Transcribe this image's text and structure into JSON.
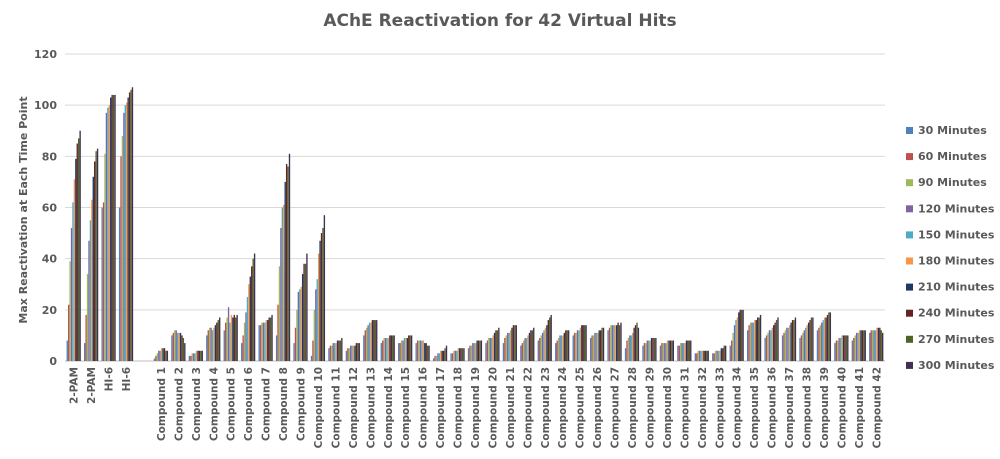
{
  "chart_data": {
    "type": "bar",
    "title": "AChE Reactivation for 42 Virtual Hits",
    "xlabel": "",
    "ylabel": "Max Reactivation at Each Time Point",
    "ylim": [
      0,
      120
    ],
    "yticks": [
      0,
      20,
      40,
      60,
      80,
      100,
      120
    ],
    "grid": "on",
    "legend_position": "right",
    "categories": [
      "2-PAM",
      "2-PAM",
      "HI-6",
      "HI-6",
      "",
      "Compound 1",
      "Compound 2",
      "Compound 3",
      "Compound 4",
      "Compound 5",
      "Compound 6",
      "Compound 7",
      "Compound 8",
      "Compound 9",
      "Compound 10",
      "Compound 11",
      "Compound 12",
      "Compound 13",
      "Compound 14",
      "Compound 15",
      "Compound 16",
      "Compound 17",
      "Compound 18",
      "Compound 19",
      "Compound 20",
      "Compound 21",
      "Compound 22",
      "Compound 23",
      "Compound 24",
      "Compound 25",
      "Compound 26",
      "Compound 27",
      "Compound 28",
      "Compound 29",
      "Compound 30",
      "Compound 31",
      "Compound 32",
      "Compound 33",
      "Compound 34",
      "Compound 35",
      "Compound 36",
      "Compound 37",
      "Compound 38",
      "Compound 39",
      "Compound 40",
      "Compound 41",
      "Compound 42"
    ],
    "series_colors": [
      "#4f81bd",
      "#c0504d",
      "#9bbb59",
      "#8064a2",
      "#4bacc6",
      "#f79646",
      "#1f3864",
      "#632523",
      "#4f6228",
      "#3f3151"
    ],
    "series": [
      {
        "name": "30 Minutes",
        "values": [
          8,
          7,
          60,
          60,
          0,
          1,
          10,
          2,
          10,
          12,
          7,
          14,
          10,
          7,
          2,
          5,
          4,
          10,
          7,
          7,
          7,
          1,
          3,
          5,
          7,
          7,
          6,
          8,
          7,
          10,
          9,
          12,
          5,
          6,
          6,
          6,
          3,
          3,
          6,
          12,
          9,
          10,
          9,
          12,
          7,
          8,
          11
        ]
      },
      {
        "name": "60 Minutes",
        "values": [
          22,
          18,
          62,
          80,
          0,
          2,
          11,
          2,
          12,
          15,
          10,
          14,
          22,
          13,
          8,
          6,
          5,
          12,
          8,
          7,
          8,
          2,
          3,
          6,
          8,
          9,
          7,
          9,
          8,
          11,
          10,
          13,
          8,
          7,
          7,
          6,
          3,
          3,
          8,
          14,
          10,
          11,
          10,
          13,
          8,
          9,
          12
        ]
      },
      {
        "name": "90 Minutes",
        "values": [
          39,
          34,
          81,
          88,
          0,
          3,
          12,
          3,
          13,
          17,
          15,
          15,
          37,
          20,
          20,
          6,
          5,
          13,
          9,
          8,
          8,
          2,
          4,
          6,
          9,
          10,
          8,
          10,
          9,
          11,
          10,
          14,
          9,
          7,
          7,
          7,
          4,
          4,
          11,
          15,
          11,
          12,
          11,
          14,
          8,
          10,
          12
        ]
      },
      {
        "name": "120 Minutes",
        "values": [
          52,
          47,
          97,
          97,
          0,
          4,
          12,
          3,
          13,
          21,
          19,
          15,
          52,
          27,
          28,
          7,
          6,
          14,
          9,
          8,
          8,
          3,
          4,
          7,
          9,
          11,
          9,
          11,
          10,
          12,
          11,
          14,
          10,
          8,
          7,
          7,
          4,
          4,
          14,
          15,
          12,
          13,
          12,
          15,
          9,
          11,
          12
        ]
      },
      {
        "name": "150 Minutes",
        "values": [
          62,
          55,
          99,
          100,
          0,
          4,
          11,
          3,
          12,
          15,
          25,
          15,
          60,
          28,
          32,
          7,
          6,
          15,
          9,
          9,
          8,
          3,
          4,
          7,
          9,
          11,
          9,
          12,
          10,
          12,
          11,
          14,
          10,
          8,
          7,
          7,
          4,
          4,
          16,
          15,
          12,
          13,
          13,
          16,
          9,
          11,
          12
        ]
      },
      {
        "name": "180 Minutes",
        "values": [
          71,
          63,
          100,
          101,
          0,
          5,
          11,
          4,
          13,
          18,
          30,
          16,
          61,
          29,
          42,
          7,
          6,
          15,
          9,
          9,
          8,
          4,
          5,
          7,
          10,
          12,
          10,
          13,
          10,
          13,
          11,
          14,
          11,
          8,
          8,
          7,
          4,
          4,
          17,
          16,
          13,
          14,
          14,
          17,
          10,
          12,
          13
        ]
      },
      {
        "name": "210 Minutes",
        "values": [
          79,
          72,
          103,
          103,
          0,
          5,
          11,
          4,
          14,
          17,
          33,
          16,
          70,
          34,
          47,
          8,
          6,
          16,
          10,
          9,
          7,
          4,
          5,
          8,
          11,
          13,
          11,
          14,
          11,
          14,
          12,
          14,
          13,
          9,
          8,
          8,
          4,
          5,
          19,
          16,
          14,
          15,
          15,
          17,
          10,
          12,
          13
        ]
      },
      {
        "name": "240 Minutes",
        "values": [
          85,
          78,
          104,
          105,
          0,
          5,
          10,
          4,
          15,
          18,
          37,
          17,
          77,
          38,
          50,
          8,
          7,
          16,
          10,
          10,
          7,
          4,
          5,
          8,
          12,
          14,
          12,
          16,
          12,
          14,
          12,
          15,
          14,
          9,
          8,
          8,
          4,
          5,
          20,
          17,
          15,
          16,
          16,
          18,
          10,
          12,
          13
        ]
      },
      {
        "name": "270 Minutes",
        "values": [
          87,
          82,
          104,
          106,
          0,
          4,
          9,
          4,
          16,
          17,
          40,
          17,
          76,
          38,
          52,
          8,
          7,
          16,
          10,
          10,
          6,
          5,
          5,
          8,
          12,
          14,
          12,
          17,
          12,
          14,
          13,
          14,
          15,
          9,
          8,
          8,
          4,
          6,
          20,
          17,
          16,
          16,
          17,
          19,
          10,
          12,
          12
        ]
      },
      {
        "name": "300 Minutes",
        "values": [
          90,
          83,
          104,
          107,
          0,
          4,
          7,
          4,
          17,
          18,
          42,
          18,
          81,
          42,
          57,
          9,
          7,
          16,
          10,
          10,
          6,
          6,
          5,
          8,
          13,
          14,
          13,
          18,
          12,
          14,
          13,
          15,
          13,
          9,
          8,
          8,
          4,
          6,
          20,
          18,
          17,
          17,
          17,
          19,
          10,
          12,
          11
        ]
      }
    ]
  }
}
